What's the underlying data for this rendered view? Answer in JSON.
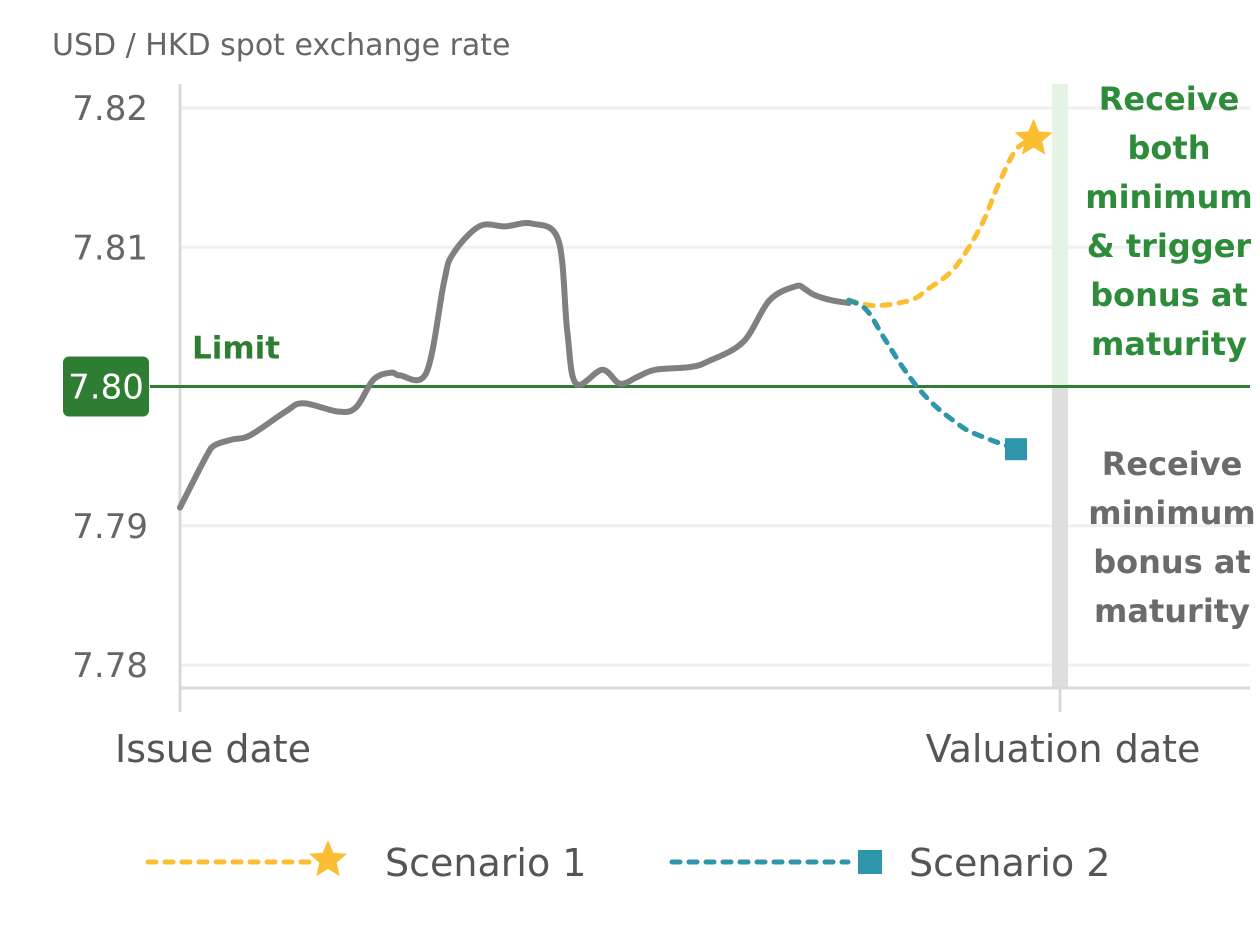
{
  "chart_data": {
    "type": "line",
    "title": "",
    "ylabel": "USD / HKD spot exchange rate",
    "xlabel": "",
    "ylim": [
      7.78,
      7.82
    ],
    "yticks": [
      "7.82",
      "7.81",
      "7.79",
      "7.78"
    ],
    "x_categories": [
      "Issue date",
      "Valuation date"
    ],
    "grid": true,
    "limit": {
      "label": "Limit",
      "value": 7.8,
      "value_label": "7.80",
      "color": "#2e7d32"
    },
    "colors": {
      "history": "#808080",
      "scenario1": "#fbbd32",
      "scenario2": "#2e95ab",
      "limit": "#2e7d32",
      "annotation_green": "#2e8b3a",
      "annotation_gray": "#6b6b6b",
      "axis": "#d9d9d9",
      "grid": "#efefef"
    },
    "history": {
      "x": [
        0,
        0.03,
        0.04,
        0.06,
        0.08,
        0.12,
        0.14,
        0.18,
        0.2,
        0.22,
        0.24,
        0.25,
        0.28,
        0.3,
        0.31,
        0.34,
        0.37,
        0.4,
        0.43,
        0.44,
        0.45,
        0.48,
        0.5,
        0.52,
        0.54,
        0.58,
        0.6,
        0.64,
        0.67,
        0.7,
        0.71,
        0.72,
        0.74,
        0.76
      ],
      "y": [
        7.7913,
        7.795,
        7.7958,
        7.7962,
        7.7965,
        7.7982,
        7.7988,
        7.7982,
        7.7985,
        7.8005,
        7.801,
        7.8008,
        7.801,
        7.8075,
        7.8095,
        7.8115,
        7.8115,
        7.8117,
        7.8105,
        7.804,
        7.8002,
        7.8012,
        7.8002,
        7.8007,
        7.8012,
        7.8014,
        7.8018,
        7.8032,
        7.8062,
        7.8072,
        7.807,
        7.8066,
        7.8062,
        7.806
      ]
    },
    "series": [
      {
        "name": "Scenario 1",
        "marker": "star",
        "x": [
          0.76,
          0.79,
          0.83,
          0.85,
          0.88,
          0.91,
          0.93,
          0.95,
          0.97
        ],
        "y": [
          7.8062,
          7.8058,
          7.8062,
          7.807,
          7.8085,
          7.8115,
          7.8145,
          7.817,
          7.8178
        ]
      },
      {
        "name": "Scenario 2",
        "marker": "square",
        "x": [
          0.76,
          0.78,
          0.8,
          0.82,
          0.84,
          0.86,
          0.88,
          0.9,
          0.95
        ],
        "y": [
          7.8062,
          7.8055,
          7.8035,
          7.8015,
          7.7998,
          7.7985,
          7.7975,
          7.7967,
          7.7955
        ]
      }
    ],
    "annotations": [
      {
        "lines": [
          "Receive",
          "both",
          "minimum",
          "& trigger",
          "bonus at",
          "maturity"
        ],
        "color": "green"
      },
      {
        "lines": [
          "Receive",
          "minimum",
          "bonus at",
          "maturity"
        ],
        "color": "gray"
      }
    ],
    "legend_placement": "bottom"
  }
}
